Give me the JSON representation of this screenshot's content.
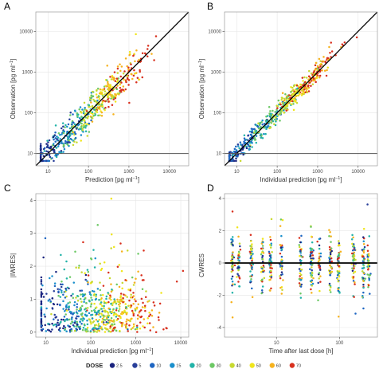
{
  "figure": {
    "legend_title": "DOSE",
    "colors": {
      "panel_bg": "#ffffff",
      "panel_border": "#9a9a9a",
      "grid": "#e6e6e6",
      "identity_line": "#000000",
      "reference_line": "#555555"
    }
  },
  "dose_scale": [
    {
      "label": "2.5",
      "color": "#1a237e"
    },
    {
      "label": "5",
      "color": "#283e99"
    },
    {
      "label": "10",
      "color": "#1e66c2"
    },
    {
      "label": "15",
      "color": "#1a8fcc"
    },
    {
      "label": "20",
      "color": "#22b3a8"
    },
    {
      "label": "30",
      "color": "#6cc864"
    },
    {
      "label": "40",
      "color": "#c8d930"
    },
    {
      "label": "50",
      "color": "#f0e51c"
    },
    {
      "label": "60",
      "color": "#f6b21e"
    },
    {
      "label": "70",
      "color": "#d8301e"
    }
  ],
  "chart_data": [
    {
      "panel": "A",
      "type": "scatter",
      "xlabel": "Prediction [pg ml",
      "xlabel_sup": "−1",
      "xlabel_end": "]",
      "ylabel": "Observation [pg ml",
      "ylabel_sup": "−1",
      "ylabel_end": "]",
      "x_scale": "log",
      "y_scale": "log",
      "xlim": [
        5,
        30000
      ],
      "ylim": [
        5,
        30000
      ],
      "xticks": [
        10,
        100,
        1000,
        10000
      ],
      "xtick_labels": [
        "10",
        "100",
        "1000",
        "10000"
      ],
      "yticks": [
        10,
        100,
        1000,
        10000
      ],
      "ytick_labels": [
        "10",
        "100",
        "1000",
        "10000"
      ],
      "lines": [
        {
          "kind": "identity"
        },
        {
          "kind": "horizontal",
          "y": 10
        }
      ],
      "points": {
        "n": 620,
        "seed": 11,
        "pattern": "identity",
        "spread": 0.22
      }
    },
    {
      "panel": "B",
      "type": "scatter",
      "xlabel": "Individual prediction [pg ml",
      "xlabel_sup": "−1",
      "xlabel_end": "]",
      "ylabel": "Observation [pg ml",
      "ylabel_sup": "−1",
      "ylabel_end": "]",
      "x_scale": "log",
      "y_scale": "log",
      "xlim": [
        5,
        30000
      ],
      "ylim": [
        5,
        30000
      ],
      "xticks": [
        10,
        100,
        1000,
        10000
      ],
      "xtick_labels": [
        "10",
        "100",
        "1000",
        "10000"
      ],
      "yticks": [
        10,
        100,
        1000,
        10000
      ],
      "ytick_labels": [
        "10",
        "100",
        "1000",
        "10000"
      ],
      "lines": [
        {
          "kind": "identity"
        },
        {
          "kind": "horizontal",
          "y": 10
        }
      ],
      "points": {
        "n": 620,
        "seed": 23,
        "pattern": "identity",
        "spread": 0.12
      }
    },
    {
      "panel": "C",
      "type": "scatter",
      "xlabel": "Individual prediction [pg ml",
      "xlabel_sup": "−1",
      "xlabel_end": "]",
      "ylabel": "|IWRES|",
      "ylabel_sup": "",
      "ylabel_end": "",
      "x_scale": "log",
      "y_scale": "linear",
      "xlim": [
        6,
        15000
      ],
      "ylim": [
        -0.15,
        4.2
      ],
      "xticks": [
        10,
        100,
        1000,
        10000
      ],
      "xtick_labels": [
        "10",
        "100",
        "1000",
        "10000"
      ],
      "yticks": [
        0,
        1,
        2,
        3,
        4
      ],
      "ytick_labels": [
        "0",
        "1",
        "2",
        "3",
        "4"
      ],
      "lines": [],
      "points": {
        "n": 700,
        "seed": 37,
        "pattern": "abs_residual"
      }
    },
    {
      "panel": "D",
      "type": "scatter",
      "xlabel": "Time after last dose [h]",
      "xlabel_sup": "",
      "xlabel_end": "",
      "ylabel": "CWRES",
      "ylabel_sup": "",
      "ylabel_end": "",
      "x_scale": "log",
      "y_scale": "linear",
      "xlim": [
        1.5,
        400
      ],
      "ylim": [
        -4.6,
        4.3
      ],
      "xticks": [
        10,
        100
      ],
      "xtick_labels": [
        "10",
        "100"
      ],
      "yticks": [
        -4,
        -2,
        0,
        2,
        4
      ],
      "ytick_labels": [
        "-4",
        "-2",
        "0",
        "2",
        "4"
      ],
      "lines": [
        {
          "kind": "horizontal",
          "y": 0,
          "bold": true
        }
      ],
      "points": {
        "n": 620,
        "seed": 51,
        "pattern": "time_columns",
        "times": [
          2,
          2.5,
          4,
          6,
          8,
          12,
          24,
          36,
          48,
          72,
          96,
          168,
          240,
          288
        ]
      }
    }
  ]
}
